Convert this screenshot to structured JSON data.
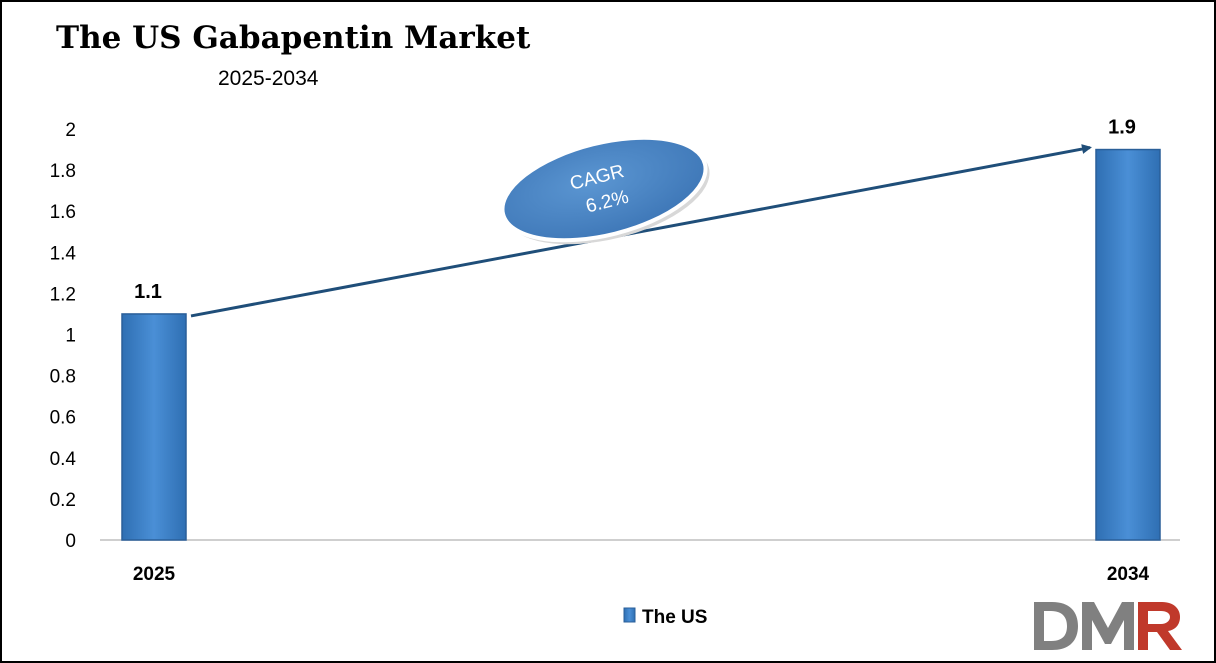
{
  "title": "The US Gabapentin Market",
  "subtitle": "2025-2034",
  "cagr": {
    "line1": "CAGR",
    "line2": "6.2%"
  },
  "legend": "The US",
  "logo_text": "DMR",
  "colors": {
    "bar": "#3c7fc4",
    "bar_edge": "#2a5f99",
    "arrow": "#1f4e79",
    "ellipse": "#4a86c5",
    "logo_gray": "#808080",
    "logo_red": "#c0392b"
  },
  "chart_data": {
    "type": "bar",
    "categories": [
      "2025",
      "2034"
    ],
    "series": [
      {
        "name": "The US",
        "values": [
          1.1,
          1.9
        ]
      }
    ],
    "data_labels": [
      "1.1",
      "1.9"
    ],
    "ylim": [
      0,
      2
    ],
    "yticks": [
      "0",
      "0.2",
      "0.4",
      "0.6",
      "0.8",
      "1",
      "1.2",
      "1.4",
      "1.6",
      "1.8",
      "2"
    ],
    "grid": false,
    "legend_position": "bottom"
  }
}
